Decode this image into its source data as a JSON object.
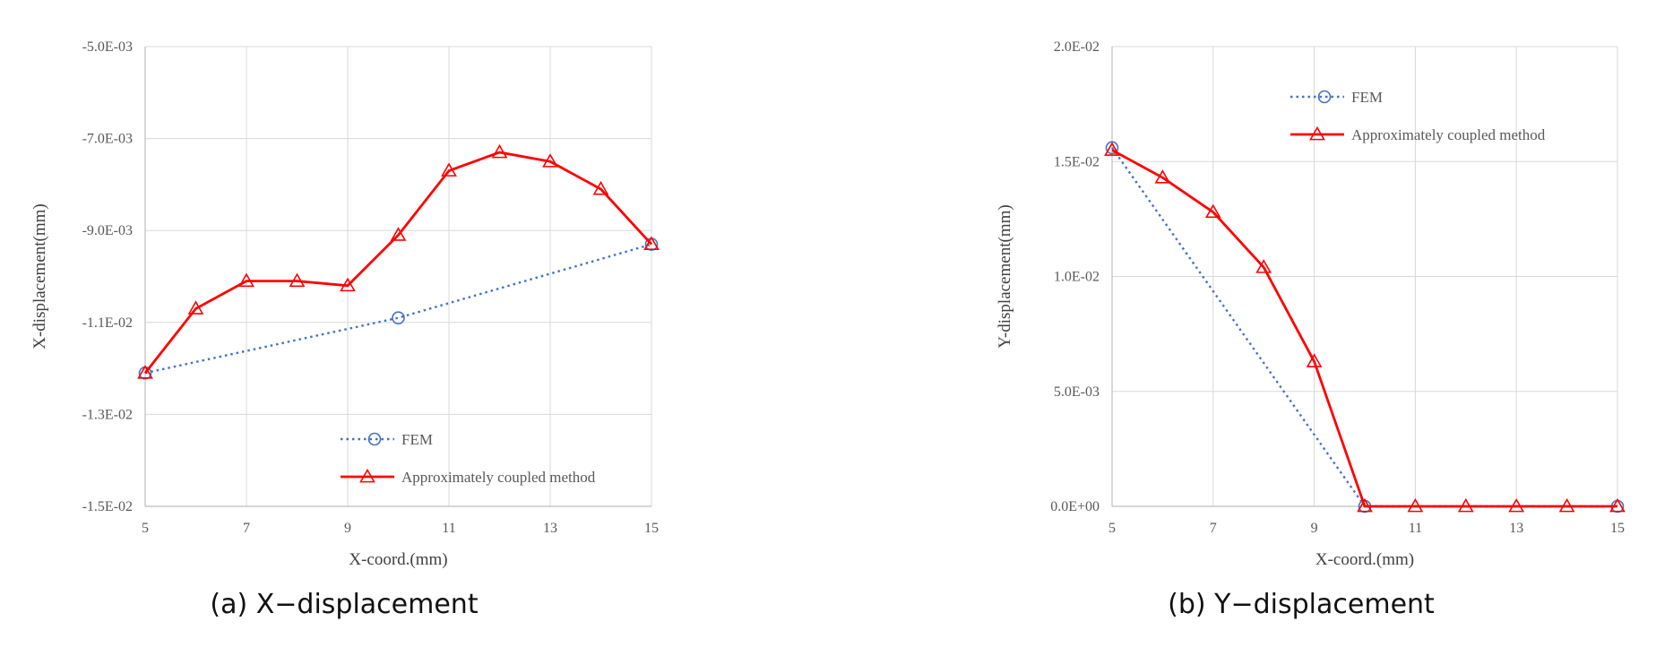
{
  "chart_data": [
    {
      "type": "line",
      "caption": "(a) X−displacement",
      "xlabel": "X-coord.(mm)",
      "ylabel": "X-displacement(mm)",
      "xlim": [
        5,
        15
      ],
      "ylim": [
        -0.015,
        -0.005
      ],
      "x_ticks": [
        5,
        7,
        9,
        11,
        13,
        15
      ],
      "x_tick_labels": [
        "5",
        "7",
        "9",
        "11",
        "13",
        "15"
      ],
      "y_ticks": [
        -0.015,
        -0.013,
        -0.011,
        -0.009,
        -0.007,
        -0.005
      ],
      "y_tick_labels": [
        "-1.5E-02",
        "-1.3E-02",
        "-1.1E-02",
        "-9.0E-03",
        "-7.0E-03",
        "-5.0E-03"
      ],
      "grid": true,
      "legend_position": "bottom-center",
      "series": [
        {
          "name": "FEM",
          "style": "dotted",
          "marker": "circle",
          "color": "#4472c4",
          "x": [
            5,
            10,
            15
          ],
          "y": [
            -0.0121,
            -0.0109,
            -0.0093
          ]
        },
        {
          "name": "Approximately coupled method",
          "style": "solid",
          "marker": "triangle",
          "color": "#ff0000",
          "x": [
            5,
            6,
            7,
            8,
            9,
            10,
            11,
            12,
            13,
            14,
            15
          ],
          "y": [
            -0.0121,
            -0.0107,
            -0.0101,
            -0.0101,
            -0.0102,
            -0.0091,
            -0.0077,
            -0.0073,
            -0.0075,
            -0.0081,
            -0.0093
          ]
        }
      ]
    },
    {
      "type": "line",
      "caption": "(b) Y−displacement",
      "xlabel": "X-coord.(mm)",
      "ylabel": "Y-displacement(mm)",
      "xlim": [
        5,
        15
      ],
      "ylim": [
        0,
        0.02
      ],
      "x_ticks": [
        5,
        7,
        9,
        11,
        13,
        15
      ],
      "x_tick_labels": [
        "5",
        "7",
        "9",
        "11",
        "13",
        "15"
      ],
      "y_ticks": [
        0,
        0.005,
        0.01,
        0.015,
        0.02
      ],
      "y_tick_labels": [
        "0.0E+00",
        "5.0E-03",
        "1.0E-02",
        "1.5E-02",
        "2.0E-02"
      ],
      "grid": true,
      "legend_position": "top-center",
      "series": [
        {
          "name": "FEM",
          "style": "dotted",
          "marker": "circle",
          "color": "#4472c4",
          "x": [
            5,
            10,
            15
          ],
          "y": [
            0.0156,
            0.0,
            0.0
          ]
        },
        {
          "name": "Approximately coupled method",
          "style": "solid",
          "marker": "triangle",
          "color": "#ff0000",
          "x": [
            5,
            6,
            7,
            8,
            9,
            10,
            11,
            12,
            13,
            14,
            15
          ],
          "y": [
            0.0155,
            0.0143,
            0.0128,
            0.0104,
            0.0063,
            0.0,
            0.0,
            0.0,
            0.0,
            0.0,
            0.0
          ]
        }
      ]
    }
  ]
}
